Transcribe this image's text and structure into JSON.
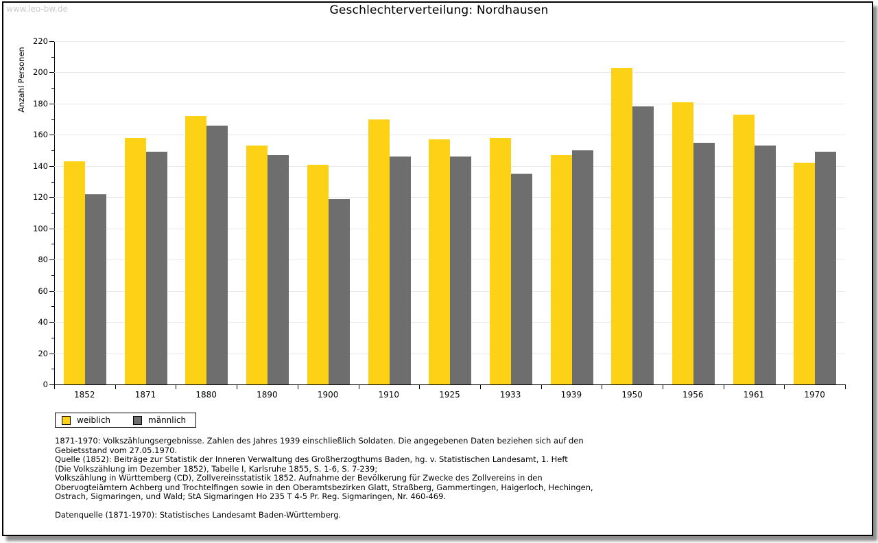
{
  "watermark": "www.leo-bw.de",
  "title": "Geschlechterverteilung: Nordhausen",
  "chart_data": {
    "type": "bar",
    "title": "Geschlechterverteilung: Nordhausen",
    "xlabel": "",
    "ylabel": "Anzahl Personen",
    "ylim": [
      0,
      220
    ],
    "ytick_step": 20,
    "minor_tick_step": 10,
    "grid": true,
    "legend_position": "below-left",
    "categories": [
      "1852",
      "1871",
      "1880",
      "1890",
      "1900",
      "1910",
      "1925",
      "1933",
      "1939",
      "1950",
      "1956",
      "1961",
      "1970"
    ],
    "series": [
      {
        "name": "weiblich",
        "color": "#FCD116",
        "values": [
          143,
          158,
          172,
          153,
          141,
          170,
          157,
          158,
          147,
          203,
          181,
          173,
          142
        ]
      },
      {
        "name": "männlich",
        "color": "#6E6E6E",
        "values": [
          122,
          149,
          166,
          147,
          119,
          146,
          146,
          135,
          150,
          178,
          155,
          153,
          149
        ]
      }
    ]
  },
  "footer": {
    "lines": [
      "1871-1970: Volkszählungsergebnisse. Zahlen des Jahres 1939 einschließlich Soldaten. Die angegebenen Daten beziehen sich auf den",
      "Gebietsstand vom 27.05.1970.",
      "Quelle (1852): Beiträge zur Statistik der Inneren Verwaltung des Großherzogthums Baden, hg. v. Statistischen Landesamt, 1. Heft",
      "(Die Volkszählung im Dezember 1852), Tabelle I, Karlsruhe 1855, S. 1-6, S. 7-239;",
      "Volkszählung in Württemberg (CD), Zollvereinsstatistik 1852. Aufnahme der Bevölkerung für Zwecke des Zollvereins in den",
      "Obervogteiämtern Achberg und Trochtelfingen sowie in den Oberamtsbezirken Glatt, Straßberg, Gammertingen, Haigerloch, Hechingen,",
      "Ostrach, Sigmaringen, und Wald; StA Sigmaringen Ho 235 T 4-5 Pr. Reg. Sigmaringen, Nr. 460-469."
    ],
    "datasource": "Datenquelle (1871-1970): Statistisches Landesamt Baden-Württemberg."
  }
}
